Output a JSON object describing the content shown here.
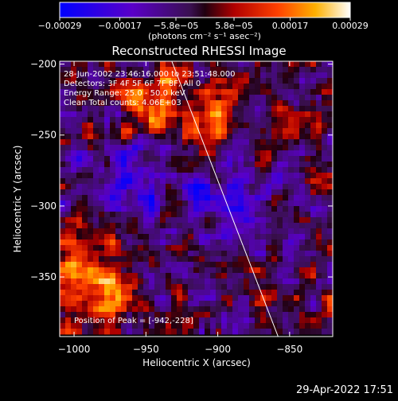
{
  "chart_data": {
    "type": "heatmap",
    "title": "Reconstructed RHESSI Image",
    "xlabel": "Heliocentric X (arcsec)",
    "ylabel": "Heliocentric Y (arcsec)",
    "xlim": [
      -1010,
      -820
    ],
    "ylim": [
      -392,
      -198
    ],
    "x_ticks": [
      -1000,
      -950,
      -900,
      -850
    ],
    "y_ticks": [
      -200,
      -250,
      -300,
      -350
    ],
    "x_tick_labels": [
      "−1000",
      "−950",
      "−900",
      "−850"
    ],
    "y_tick_labels": [
      "−200",
      "−250",
      "−300",
      "−350"
    ],
    "colorbar": {
      "range": [
        -0.00029,
        0.00029
      ],
      "ticks": [
        -0.00029,
        -0.00017,
        -5.8e-05,
        5.8e-05,
        0.00017,
        0.00029
      ],
      "tick_labels": [
        "−0.00029",
        "−0.00017",
        "−5.8e−05",
        "5.8e−05",
        "0.00017",
        "0.00029"
      ],
      "unit_label": "(photons cm⁻² s⁻¹ asec⁻²)"
    },
    "annotations": {
      "time": "28-Jun-2002 23:46:16.000 to 23:51:48.000",
      "detectors": "Detectors: 3F 4F 5F 6F 7F 8F, All 0",
      "energy": "Energy Range: 25.0 - 50.0 keV",
      "clean": "Clean     Total counts: 4.06E+03",
      "peak": "Position of Peak = [-942,-228]"
    },
    "limb_line": {
      "x": [
        -932,
        -858
      ],
      "y": [
        -198,
        -392
      ]
    }
  },
  "footer": {
    "timestamp": "29-Apr-2022 17:51"
  },
  "colors": {
    "background": "#000000",
    "text": "#ffffff"
  }
}
